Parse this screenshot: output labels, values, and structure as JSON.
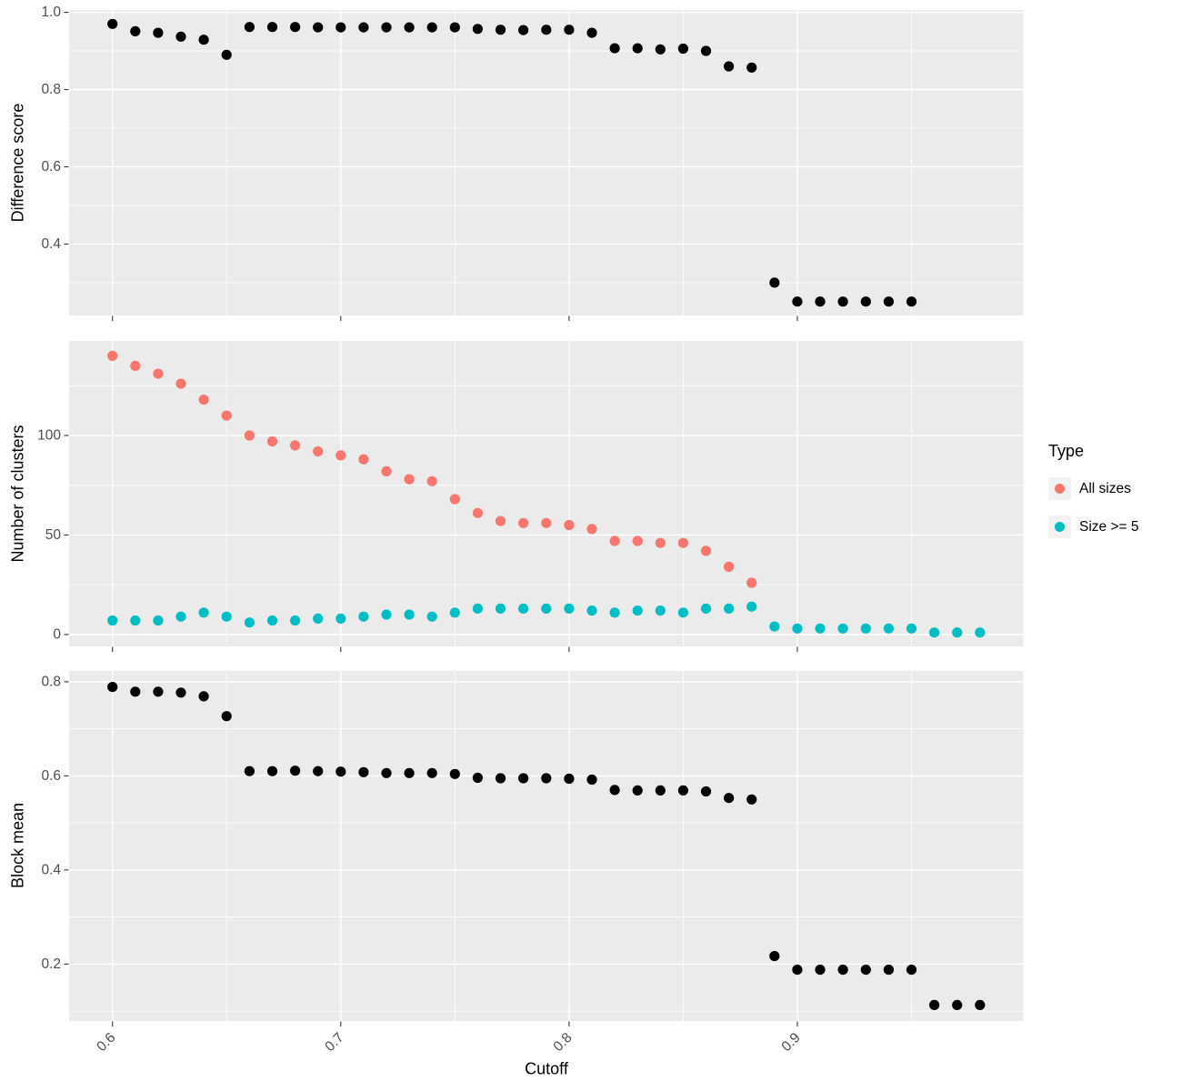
{
  "figure": {
    "background": "#FFFFFF",
    "panel_background": "#EBEBEB",
    "gridline_color": "#FFFFFF",
    "tick_color": "#333333",
    "tick_label_color": "#4D4D4D",
    "axis_title_color": "#000000",
    "legend_key_background": "#F2F2F2",
    "point_radius": 5.6
  },
  "axes": {
    "x": {
      "title": "Cutoff",
      "lim": [
        0.581,
        0.999
      ],
      "tick_values": [
        0.6,
        0.7,
        0.8,
        0.9
      ],
      "tick_labels": [
        "0.6",
        "0.7",
        "0.8",
        "0.9"
      ],
      "minor_gridlines": [
        0.65,
        0.75,
        0.85,
        0.95
      ]
    }
  },
  "legend": {
    "title": "Type",
    "items": [
      {
        "label": "All sizes",
        "color": "#F8766D"
      },
      {
        "label": "Size >= 5",
        "color": "#00BFC4"
      }
    ]
  },
  "chart_data": [
    {
      "type": "scatter",
      "title": "",
      "xlabel": "Cutoff",
      "ylabel": "Difference score",
      "xlim": [
        0.581,
        0.999
      ],
      "ylim": [
        0.215,
        1.006
      ],
      "grid": true,
      "legend_position": "none",
      "yticks": {
        "values": [
          1.0,
          0.8,
          0.6,
          0.4
        ],
        "labels": [
          "1.0",
          "0.8",
          "0.6",
          "0.4"
        ]
      },
      "minor_y": [
        0.9,
        0.7,
        0.5,
        0.3
      ],
      "series": [
        {
          "name": "Difference score",
          "color": "#000000",
          "x": [
            0.6,
            0.61,
            0.62,
            0.63,
            0.64,
            0.65,
            0.66,
            0.67,
            0.68,
            0.69,
            0.7,
            0.71,
            0.72,
            0.73,
            0.74,
            0.75,
            0.76,
            0.77,
            0.78,
            0.79,
            0.8,
            0.81,
            0.82,
            0.83,
            0.84,
            0.85,
            0.86,
            0.87,
            0.88,
            0.89,
            0.9,
            0.91,
            0.92,
            0.93,
            0.94,
            0.95
          ],
          "y": [
            0.97,
            0.951,
            0.947,
            0.937,
            0.929,
            0.89,
            0.962,
            0.962,
            0.962,
            0.961,
            0.961,
            0.961,
            0.961,
            0.961,
            0.961,
            0.961,
            0.957,
            0.955,
            0.954,
            0.955,
            0.955,
            0.947,
            0.907,
            0.907,
            0.904,
            0.906,
            0.9,
            0.86,
            0.857,
            0.3,
            0.251,
            0.251,
            0.251,
            0.251,
            0.251,
            0.251
          ]
        }
      ]
    },
    {
      "type": "scatter",
      "title": "",
      "xlabel": "Cutoff",
      "ylabel": "Number of clusters",
      "xlim": [
        0.581,
        0.999
      ],
      "ylim": [
        -6,
        147.5
      ],
      "grid": true,
      "legend_position": "right",
      "yticks": {
        "values": [
          100,
          50,
          0
        ],
        "labels": [
          "100",
          "50",
          "0"
        ]
      },
      "minor_y": [
        125,
        75,
        25
      ],
      "series": [
        {
          "name": "All sizes",
          "color": "#F8766D",
          "x": [
            0.6,
            0.61,
            0.62,
            0.63,
            0.64,
            0.65,
            0.66,
            0.67,
            0.68,
            0.69,
            0.7,
            0.71,
            0.72,
            0.73,
            0.74,
            0.75,
            0.76,
            0.77,
            0.78,
            0.79,
            0.8,
            0.81,
            0.82,
            0.83,
            0.84,
            0.85,
            0.86,
            0.87,
            0.88
          ],
          "y": [
            140,
            135,
            131,
            126,
            118,
            110,
            100,
            97,
            95,
            92,
            90,
            88,
            82,
            78,
            77,
            68,
            61,
            57,
            56,
            56,
            55,
            53,
            47,
            47,
            46,
            46,
            42,
            34,
            26
          ]
        },
        {
          "name": "Size >= 5",
          "color": "#00BFC4",
          "x": [
            0.6,
            0.61,
            0.62,
            0.63,
            0.64,
            0.65,
            0.66,
            0.67,
            0.68,
            0.69,
            0.7,
            0.71,
            0.72,
            0.73,
            0.74,
            0.75,
            0.76,
            0.77,
            0.78,
            0.79,
            0.8,
            0.81,
            0.82,
            0.83,
            0.84,
            0.85,
            0.86,
            0.87,
            0.88,
            0.89,
            0.9,
            0.91,
            0.92,
            0.93,
            0.94,
            0.95,
            0.96,
            0.97,
            0.98
          ],
          "y": [
            7,
            7,
            7,
            9,
            11,
            9,
            6,
            7,
            7,
            8,
            8,
            9,
            10,
            10,
            9,
            11,
            13,
            13,
            13,
            13,
            13,
            12,
            11,
            12,
            12,
            11,
            13,
            13,
            14,
            4,
            3,
            3,
            3,
            3,
            3,
            3,
            1,
            1,
            1
          ]
        }
      ]
    },
    {
      "type": "scatter",
      "title": "",
      "xlabel": "Cutoff",
      "ylabel": "Block mean",
      "xlim": [
        0.581,
        0.999
      ],
      "ylim": [
        0.079,
        0.823
      ],
      "grid": true,
      "legend_position": "none",
      "yticks": {
        "values": [
          0.8,
          0.6,
          0.4,
          0.2
        ],
        "labels": [
          "0.8",
          "0.6",
          "0.4",
          "0.2"
        ]
      },
      "minor_y": [
        0.7,
        0.5,
        0.3,
        0.1
      ],
      "series": [
        {
          "name": "Block mean",
          "color": "#000000",
          "x": [
            0.6,
            0.61,
            0.62,
            0.63,
            0.64,
            0.65,
            0.66,
            0.67,
            0.68,
            0.69,
            0.7,
            0.71,
            0.72,
            0.73,
            0.74,
            0.75,
            0.76,
            0.77,
            0.78,
            0.79,
            0.8,
            0.81,
            0.82,
            0.83,
            0.84,
            0.85,
            0.86,
            0.87,
            0.88,
            0.89,
            0.9,
            0.91,
            0.92,
            0.93,
            0.94,
            0.95,
            0.96,
            0.97,
            0.98
          ],
          "y": [
            0.789,
            0.779,
            0.779,
            0.777,
            0.769,
            0.727,
            0.61,
            0.61,
            0.611,
            0.61,
            0.609,
            0.608,
            0.606,
            0.606,
            0.606,
            0.604,
            0.596,
            0.595,
            0.595,
            0.595,
            0.594,
            0.592,
            0.57,
            0.569,
            0.569,
            0.569,
            0.567,
            0.553,
            0.55,
            0.217,
            0.188,
            0.188,
            0.188,
            0.188,
            0.188,
            0.188,
            0.113,
            0.113,
            0.113
          ]
        }
      ]
    }
  ]
}
